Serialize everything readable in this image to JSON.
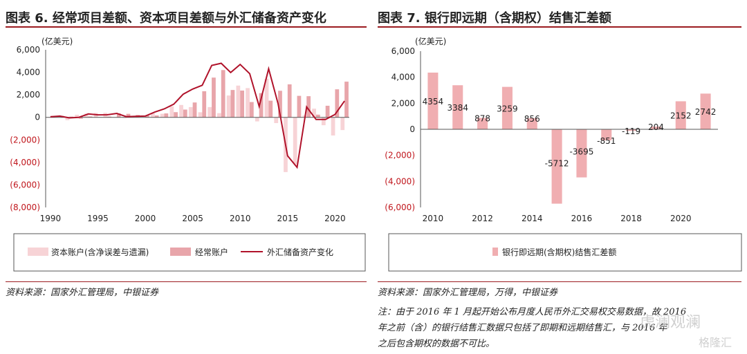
{
  "left": {
    "title": "图表 6. 经常项目差额、资本项目差额与外汇储备资产变化",
    "source": "资料来源：国家外汇管理局，中银证券"
  },
  "right": {
    "title": "图表 7. 银行即远期（含期权）结售汇差额",
    "source": "资料来源：国家外汇管理局，万得，中银证券",
    "note_lines": [
      "注：由于 2016 年 1 月起开始公布月度人民币外汇交易权交易数据，故 2016",
      "年之前（含）的银行结售汇数据只包括了即期和远期结售汇，与 2016 年",
      "之后包含期权的数据不可比。"
    ]
  },
  "watermarks": [
    "虎澜观澜",
    "格隆汇"
  ],
  "colors": {
    "accent": "#9b1b1f",
    "capital": "#f7d3d6",
    "current": "#e8a5aa",
    "reserve": "#b0122a",
    "bank": "#f0aeb1",
    "negative_tick": "#c0161c"
  },
  "chart_data": [
    {
      "type": "bar",
      "unit": "(亿美元)",
      "x": [
        1990,
        1991,
        1992,
        1993,
        1994,
        1995,
        1996,
        1997,
        1998,
        1999,
        2000,
        2001,
        2002,
        2003,
        2004,
        2005,
        2006,
        2007,
        2008,
        2009,
        2010,
        2011,
        2012,
        2013,
        2014,
        2015,
        2016,
        2017,
        2018,
        2019,
        2020,
        2021
      ],
      "x_ticks": [
        1990,
        1995,
        2000,
        2005,
        2010,
        2015,
        2020
      ],
      "ylim": [
        -8000,
        6000
      ],
      "y_ticks": [
        6000,
        4000,
        2000,
        0,
        -2000,
        -4000,
        -6000,
        -8000
      ],
      "y_tick_labels": [
        "6,000",
        "4,000",
        "2,000",
        "0",
        "(2,000)",
        "(4,000)",
        "(6,000)",
        "(8,000)"
      ],
      "series": [
        {
          "name": "资本账户(含净误差与遗漏)",
          "kind": "bar",
          "values": [
            -30,
            80,
            -250,
            230,
            330,
            390,
            400,
            -20,
            -60,
            50,
            20,
            350,
            320,
            980,
            1100,
            910,
            450,
            910,
            370,
            1940,
            2820,
            2600,
            -360,
            3430,
            -510,
            -4860,
            -4160,
            180,
            770,
            -700,
            -1610,
            -1130
          ]
        },
        {
          "name": "经常账户",
          "kind": "bar",
          "values": [
            120,
            130,
            60,
            -120,
            80,
            20,
            70,
            350,
            310,
            210,
            200,
            170,
            350,
            460,
            690,
            1320,
            2320,
            3530,
            4200,
            2430,
            2380,
            1360,
            2150,
            1480,
            2360,
            2930,
            1910,
            1880,
            240,
            1030,
            2490,
            3170
          ]
        },
        {
          "name": "外汇储备资产变化",
          "kind": "line",
          "values": [
            50,
            110,
            -50,
            0,
            300,
            220,
            230,
            350,
            60,
            90,
            110,
            470,
            750,
            1170,
            2060,
            2510,
            2850,
            4610,
            4800,
            3980,
            4700,
            3880,
            970,
            4310,
            1190,
            -3420,
            -4440,
            930,
            -190,
            -190,
            260,
            1450
          ]
        }
      ]
    },
    {
      "type": "bar",
      "unit": "(亿美元)",
      "categories": [
        2010,
        2011,
        2012,
        2013,
        2014,
        2015,
        2016,
        2017,
        2018,
        2019,
        2020,
        2021
      ],
      "x_tick_labels": [
        "2010",
        "",
        "2012",
        "",
        "2014",
        "",
        "2016",
        "",
        "2018",
        "",
        "2020",
        ""
      ],
      "ylim": [
        -6000,
        6000
      ],
      "y_ticks": [
        6000,
        4000,
        2000,
        0,
        -2000,
        -4000,
        -6000
      ],
      "y_tick_labels": [
        "6,000",
        "4,000",
        "2,000",
        "0",
        "(2,000)",
        "(4,000)",
        "(6,000)"
      ],
      "series": [
        {
          "name": "银行即远期(含期权)结售汇差额",
          "values": [
            4354,
            3384,
            878,
            3259,
            856,
            -5712,
            -3695,
            -851,
            -119,
            204,
            2152,
            2742
          ]
        }
      ]
    }
  ]
}
